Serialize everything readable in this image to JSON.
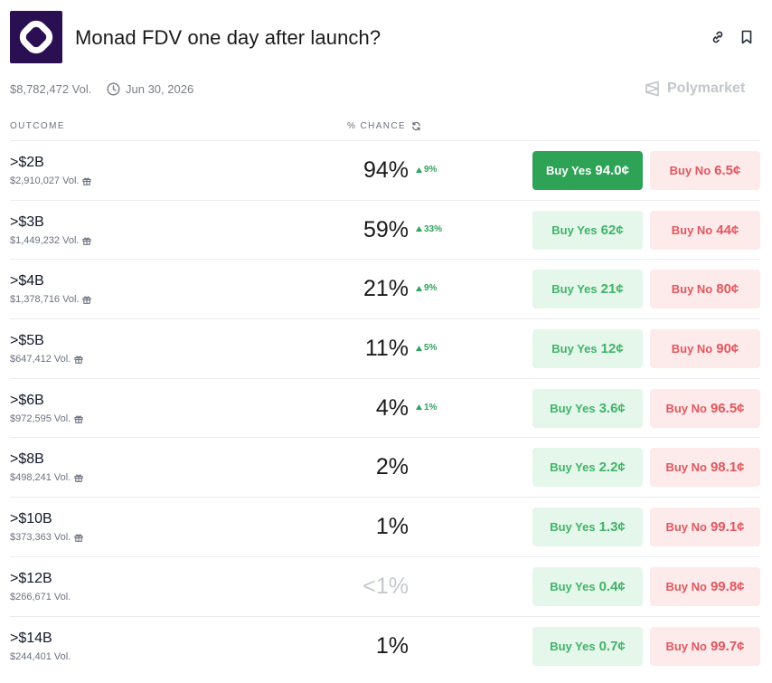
{
  "header": {
    "title": "Monad FDV one day after launch?",
    "volume": "$8,782,472 Vol.",
    "date": "Jun 30, 2026",
    "brand": "Polymarket"
  },
  "columns": {
    "outcome": "OUTCOME",
    "chance": "% CHANCE"
  },
  "colors": {
    "yes": "#2ea356",
    "yes_light": "#e5f6ea",
    "no": "#e1575f",
    "no_light": "#fdeaea",
    "logo_bg": "#2a0f52"
  },
  "outcomes": [
    {
      "label": ">$2B",
      "volume": "$2,910,027 Vol.",
      "gift": true,
      "chance": "94%",
      "delta": "9%",
      "yes_text": "Buy Yes",
      "yes_price": "94.0¢",
      "no_text": "Buy No",
      "no_price": "6.5¢",
      "active": true
    },
    {
      "label": ">$3B",
      "volume": "$1,449,232 Vol.",
      "gift": true,
      "chance": "59%",
      "delta": "33%",
      "yes_text": "Buy Yes",
      "yes_price": "62¢",
      "no_text": "Buy No",
      "no_price": "44¢"
    },
    {
      "label": ">$4B",
      "volume": "$1,378,716 Vol.",
      "gift": true,
      "chance": "21%",
      "delta": "9%",
      "yes_text": "Buy Yes",
      "yes_price": "21¢",
      "no_text": "Buy No",
      "no_price": "80¢"
    },
    {
      "label": ">$5B",
      "volume": "$647,412 Vol.",
      "gift": true,
      "chance": "11%",
      "delta": "5%",
      "yes_text": "Buy Yes",
      "yes_price": "12¢",
      "no_text": "Buy No",
      "no_price": "90¢"
    },
    {
      "label": ">$6B",
      "volume": "$972,595 Vol.",
      "gift": true,
      "chance": "4%",
      "delta": "1%",
      "yes_text": "Buy Yes",
      "yes_price": "3.6¢",
      "no_text": "Buy No",
      "no_price": "96.5¢"
    },
    {
      "label": ">$8B",
      "volume": "$498,241 Vol.",
      "gift": true,
      "chance": "2%",
      "delta": "",
      "yes_text": "Buy Yes",
      "yes_price": "2.2¢",
      "no_text": "Buy No",
      "no_price": "98.1¢"
    },
    {
      "label": ">$10B",
      "volume": "$373,363 Vol.",
      "gift": true,
      "chance": "1%",
      "delta": "",
      "yes_text": "Buy Yes",
      "yes_price": "1.3¢",
      "no_text": "Buy No",
      "no_price": "99.1¢"
    },
    {
      "label": ">$12B",
      "volume": "$266,671 Vol.",
      "gift": false,
      "chance": "<1%",
      "delta": "",
      "yes_text": "Buy Yes",
      "yes_price": "0.4¢",
      "no_text": "Buy No",
      "no_price": "99.8¢",
      "muted": true
    },
    {
      "label": ">$14B",
      "volume": "$244,401 Vol.",
      "gift": false,
      "chance": "1%",
      "delta": "",
      "yes_text": "Buy Yes",
      "yes_price": "0.7¢",
      "no_text": "Buy No",
      "no_price": "99.7¢"
    }
  ]
}
